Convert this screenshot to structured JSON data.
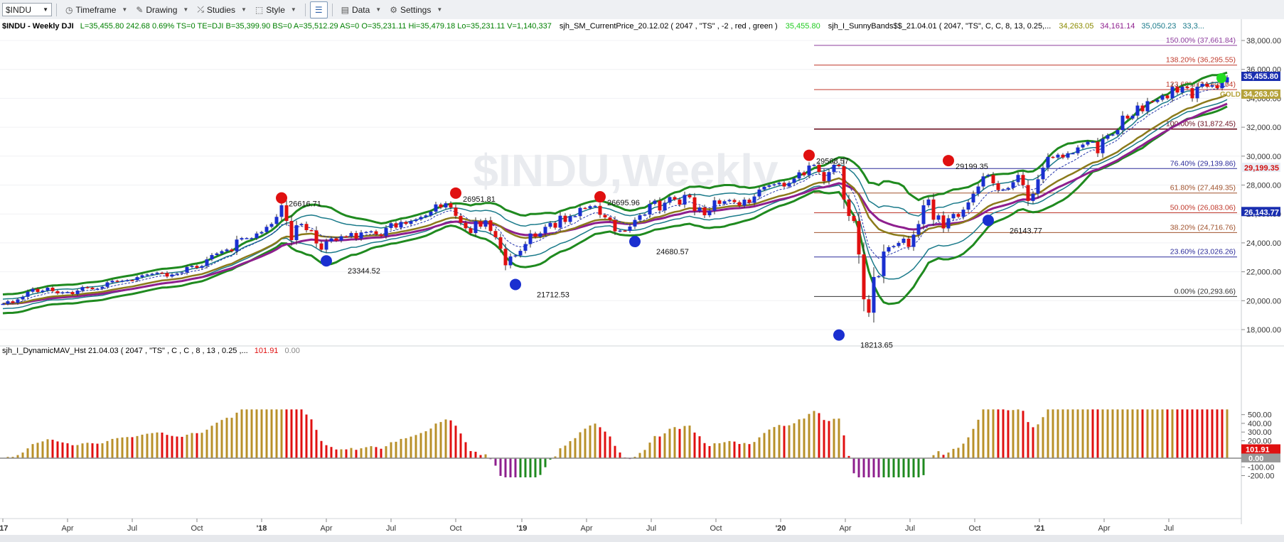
{
  "toolbar": {
    "symbol": "$INDU",
    "items": [
      {
        "label": "Timeframe",
        "icon": "clock-icon"
      },
      {
        "label": "Drawing",
        "icon": "pencil-icon"
      },
      {
        "label": "Studies",
        "icon": "studies-icon"
      },
      {
        "label": "Style",
        "icon": "style-icon"
      },
      {
        "label": "Data",
        "icon": "data-icon"
      },
      {
        "label": "Settings",
        "icon": "gear-icon"
      }
    ]
  },
  "header": {
    "symbol_line": "$INDU - Weekly  DJI",
    "quote": "L=35,455.80  242.68  0.69%  TS=0  TE=DJI  B=35,399.90  BS=0  A=35,512.29  AS=0  O=35,231.11  Hi=35,479.18  Lo=35,231.11  V=1,140,337",
    "study1": "sjh_SM_CurrentPrice_20.12.02 ( 2047 , \"TS\" , -2 , red , green )",
    "study1_value": "35,455.80",
    "study2": "sjh_I_SunnyBands$$_21.04.01 (  2047,  \"TS\",  C,  C,    8,  13,  0.25,...",
    "study2_v1": "34,263.05",
    "study2_v2": "34,161.14",
    "study2_v3": "35,050.23",
    "study2_v4": "33,3..."
  },
  "watermark": "$INDU,Weekly",
  "lower_header": {
    "title": "sjh_I_DynamicMAV_Hst 21.04.03 ( 2047 , \"TS\" , C , C ,  8 , 13 , 0.25 ,...",
    "v1": "101.91",
    "v2": "0.00"
  },
  "chart_data": {
    "type": "candlestick",
    "price_axis": {
      "ticks": [
        "38,000.00",
        "36,000.00",
        "34,000.00",
        "32,000.00",
        "30,000.00",
        "28,000.00",
        "26,000.00",
        "24,000.00",
        "22,000.00",
        "20,000.00",
        "18,000.00"
      ],
      "ylim": [
        17200,
        38800
      ]
    },
    "time_axis": {
      "ticks": [
        "'17",
        "Apr",
        "Jul",
        "Oct",
        "'18",
        "Apr",
        "Jul",
        "Oct",
        "'19",
        "Apr",
        "Jul",
        "Oct",
        "'20",
        "Apr",
        "Jul",
        "Oct",
        "'21",
        "Apr",
        "Jul"
      ]
    },
    "pivots": [
      {
        "type": "high",
        "label": "26616.71",
        "week": 56,
        "price": 26616.71
      },
      {
        "type": "low",
        "label": "23344.52",
        "week": 65,
        "price": 23344.52
      },
      {
        "type": "high",
        "label": "26951.81",
        "week": 91,
        "price": 26951.81
      },
      {
        "type": "low",
        "label": "21712.53",
        "week": 103,
        "price": 21712.53
      },
      {
        "type": "high",
        "label": "26695.96",
        "week": 120,
        "price": 26695.96
      },
      {
        "type": "low",
        "label": "24680.57",
        "week": 127,
        "price": 24680.57
      },
      {
        "type": "high",
        "label": "29568.57",
        "week": 162,
        "price": 29568.57
      },
      {
        "type": "low",
        "label": "18213.65",
        "week": 168,
        "price": 18213.65
      },
      {
        "type": "high",
        "label": "29199.35",
        "week": 190,
        "price": 29199.35
      },
      {
        "type": "low",
        "label": "26143.77",
        "week": 198,
        "price": 26143.77
      }
    ],
    "fibonacci": [
      {
        "label": "150.00% (37,661.84)",
        "price": 37661.84,
        "color": "#8e3c9e"
      },
      {
        "label": "138.20% (36,295.55)",
        "price": 36295.55,
        "color": "#c0392b"
      },
      {
        "label": "123.60% (34,605.04)",
        "price": 34605.04,
        "color": "#c0392b"
      },
      {
        "label": "100.00% (31,872.45)",
        "price": 31872.45,
        "color": "#6b1020"
      },
      {
        "label": "76.40% (29,139.86)",
        "price": 29139.86,
        "color": "#2c2c9a"
      },
      {
        "label": "61.80% (27,449.35)",
        "price": 27449.35,
        "color": "#a0522d"
      },
      {
        "label": "50.00% (26,083.06)",
        "price": 26083.06,
        "color": "#c0392b"
      },
      {
        "label": "38.20% (24,716.76)",
        "price": 24716.76,
        "color": "#a0522d"
      },
      {
        "label": "23.60% (23,026.26)",
        "price": 23026.26,
        "color": "#2c2c9a"
      },
      {
        "label": "0.00% (20,293.66)",
        "price": 20293.66,
        "color": "#333333"
      }
    ],
    "closes": [
      19780,
      19960,
      19840,
      20090,
      20270,
      20620,
      20820,
      20600,
      20700,
      20900,
      20660,
      20510,
      20580,
      20600,
      20450,
      20700,
      20940,
      20900,
      20800,
      20830,
      20960,
      21270,
      21380,
      21330,
      21380,
      21420,
      21410,
      21630,
      21760,
      21810,
      21860,
      21940,
      21920,
      21670,
      21810,
      21880,
      21950,
      22330,
      22410,
      22270,
      22400,
      22860,
      23160,
      23270,
      23430,
      23540,
      23420,
      24230,
      24330,
      24330,
      24330,
      24650,
      24750,
      25110,
      25310,
      25800,
      26600,
      25520,
      24190,
      25220,
      25310,
      24880,
      24860,
      23960,
      23530,
      24100,
      24310,
      24160,
      24460,
      24450,
      24680,
      24300,
      24720,
      24750,
      24800,
      24600,
      24480,
      25030,
      25360,
      25060,
      25450,
      25310,
      25510,
      25620,
      25790,
      25900,
      26160,
      26660,
      26450,
      26740,
      26440,
      25870,
      25390,
      25010,
      24680,
      25500,
      25120,
      25560,
      24820,
      24390,
      23590,
      22450,
      23060,
      23130,
      23450,
      23920,
      24650,
      24420,
      24660,
      25110,
      25380,
      25050,
      25880,
      25450,
      25840,
      25850,
      26420,
      26390,
      26540,
      26560,
      25940,
      25760,
      25580,
      24800,
      24850,
      24830,
      25130,
      25590,
      25910,
      25960,
      26700,
      26920,
      26240,
      26780,
      27170,
      27000,
      26650,
      27320,
      27150,
      26200,
      26450,
      25910,
      26220,
      26940,
      26700,
      26880,
      26970,
      26820,
      26570,
      26990,
      26770,
      27210,
      27690,
      27880,
      27980,
      28050,
      28160,
      27900,
      28150,
      28450,
      28880,
      28680,
      29350,
      29400,
      28900,
      28260,
      28900,
      29400,
      29300,
      27000,
      25860,
      25510,
      23200,
      20100,
      19170,
      21640,
      21700,
      23400,
      23700,
      23780,
      24000,
      24290,
      23720,
      24570,
      25300,
      26600,
      27000,
      25600,
      25900,
      25000,
      25700,
      26000,
      25800,
      26300,
      26800,
      27400,
      27900,
      28600,
      28700,
      28120,
      27650,
      27700,
      27800,
      28200,
      28700,
      28000,
      26900,
      27400,
      28400,
      29200,
      29950,
      29900,
      30100,
      29900,
      30200,
      30200,
      30600,
      30800,
      31000,
      31000,
      30200,
      31200,
      31450,
      31500,
      31800,
      32800,
      32600,
      32800,
      33500,
      33100,
      33800,
      33750,
      33900,
      34200,
      34000,
      34800,
      34400,
      34800,
      34700,
      34000,
      34800,
      35000,
      34800,
      34900,
      34700,
      35100,
      35455
    ]
  }
}
